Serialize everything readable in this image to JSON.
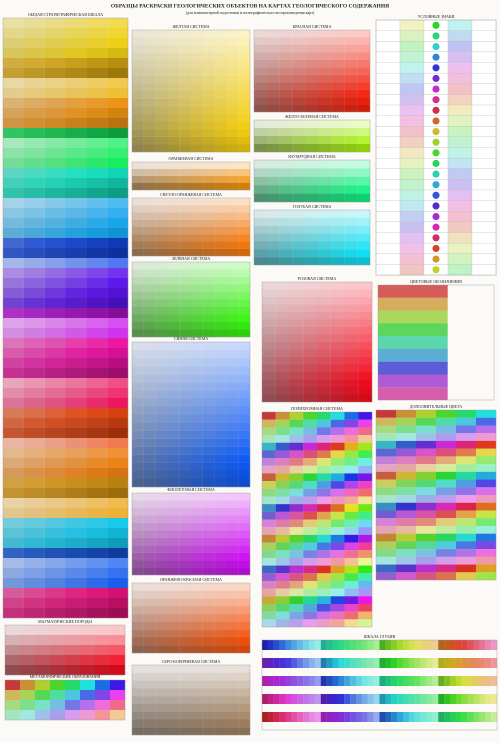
{
  "header": {
    "title": "ОБРАЗЦЫ РАСКРАСКИ ГЕОЛОГИЧЕСКИХ ОБЪЕКТОВ НА КАРТАХ ГЕОЛОГИЧЕСКОГО СОДЕРЖАНИЯ",
    "subtitle": "(для компьютерной подготовки и полиграфического воспроизведения карт)"
  },
  "sections": [
    {
      "title": "ОБЩАЯ СТРАТИГРАФИЧЕСКАЯ ШКАЛА"
    },
    {
      "title": "ЖЕЛТАЯ СИСТЕМА"
    },
    {
      "title": "ОРАНЖЕВАЯ СИСТЕМА"
    },
    {
      "title": "СВЕТЛО-ОРАНЖЕВАЯ СИСТЕМА"
    },
    {
      "title": "ЗЕЛЕНАЯ СИСТЕМА"
    },
    {
      "title": "СИНЯЯ СИСТЕМА"
    },
    {
      "title": "ФИОЛЕТОВАЯ СИСТЕМА"
    },
    {
      "title": "ОРАНЖЕВО-КРАСНАЯ СИСТЕМА"
    },
    {
      "title": "СЕРО-КОРИЧНЕВАЯ СИСТЕМА"
    },
    {
      "title": "КРАСНАЯ СИСТЕМА"
    },
    {
      "title": "ЖЕЛТО-ЗЕЛЕНАЯ СИСТЕМА"
    },
    {
      "title": "ИЗУМРУДНАЯ СИСТЕМА"
    },
    {
      "title": "ГОЛУБАЯ СИСТЕМА"
    },
    {
      "title": "РОЗОВАЯ СИСТЕМА"
    },
    {
      "title": "ПОЛИХРОМНАЯ СИСТЕМА"
    },
    {
      "title": "УСЛОВНЫЕ ЗНАКИ"
    },
    {
      "title": "ЦВЕТОВЫЕ ОБОЗНАЧЕНИЯ"
    },
    {
      "title": "ДОПОЛНИТЕЛЬНЫЕ ЦВЕТА"
    },
    {
      "title": "МАГМАТИЧЕСКИЕ ПОРОДЫ"
    },
    {
      "title": "МЕТАМОРФИЧЕСКИЕ ОБРАЗОВАНИЯ"
    },
    {
      "title": "ШКАЛА ГЛУБИН"
    }
  ]
}
